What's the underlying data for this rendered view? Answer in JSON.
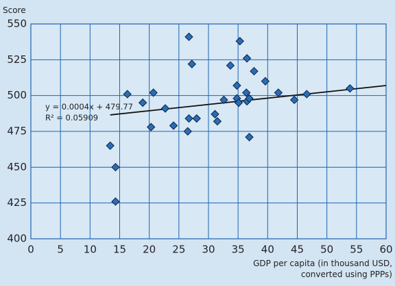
{
  "chart_data": {
    "type": "scatter",
    "ylabel": "Score",
    "xlabel": [
      "GDP per capita (in thousand USD,",
      "converted using PPPs)"
    ],
    "annotations": [
      "y = 0.0004x + 479.77",
      "R² = 0.05909"
    ],
    "x": [
      13.4,
      14.3,
      14.3,
      16.3,
      18.9,
      20.7,
      20.3,
      22.7,
      24.1,
      26.7,
      27.2,
      26.7,
      26.5,
      28.0,
      31.1,
      31.5,
      32.6,
      33.7,
      34.8,
      34.8,
      35.1,
      35.3,
      36.5,
      36.4,
      36.5,
      36.9,
      36.9,
      37.7,
      39.6,
      41.8,
      44.5,
      46.6,
      53.9
    ],
    "series": [
      {
        "color": "#2a6db5",
        "values": [
          465,
          450,
          426,
          501,
          495,
          502,
          478,
          491,
          479,
          541,
          522,
          484,
          475,
          484,
          487,
          482,
          497,
          521,
          507,
          498,
          495,
          538,
          526,
          502,
          496,
          498,
          471,
          517,
          510,
          502,
          497,
          501,
          505
        ]
      }
    ],
    "trendline": {
      "x": [
        13.4,
        60
      ],
      "y": [
        486.5,
        507
      ],
      "color": "#111111"
    },
    "xlim": [
      0,
      60
    ],
    "xticks": [
      0,
      5,
      10,
      15,
      20,
      25,
      30,
      35,
      40,
      45,
      50,
      55,
      60
    ],
    "ylim": [
      400,
      550
    ],
    "yticks": [
      400,
      425,
      450,
      475,
      500,
      525,
      550
    ],
    "grid": true,
    "grid_color": "#1f64b0"
  }
}
